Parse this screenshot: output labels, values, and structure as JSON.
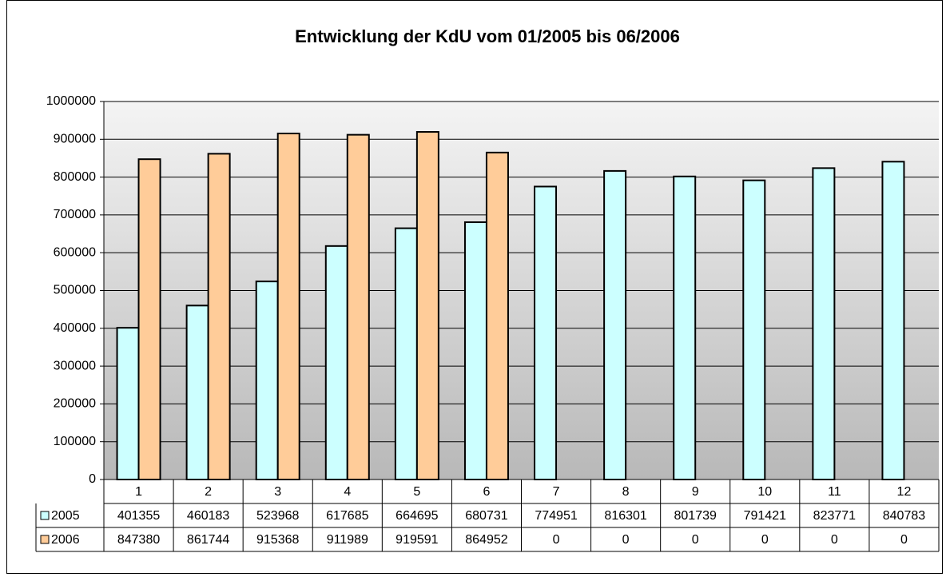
{
  "chart_data": {
    "type": "bar",
    "title": "Entwicklung der KdU vom 01/2005 bis 06/2006",
    "categories": [
      "1",
      "2",
      "3",
      "4",
      "5",
      "6",
      "7",
      "8",
      "9",
      "10",
      "11",
      "12"
    ],
    "series": [
      {
        "name": "2005",
        "color": "#ccffff",
        "values": [
          401355,
          460183,
          523968,
          617685,
          664695,
          680731,
          774951,
          816301,
          801739,
          791421,
          823771,
          840783
        ]
      },
      {
        "name": "2006",
        "color": "#ffcc99",
        "values": [
          847380,
          861744,
          915368,
          911989,
          919591,
          864952,
          0,
          0,
          0,
          0,
          0,
          0
        ]
      }
    ],
    "ylim": [
      0,
      1000000
    ],
    "yticks": [
      0,
      100000,
      200000,
      300000,
      400000,
      500000,
      600000,
      700000,
      800000,
      900000,
      1000000
    ],
    "grid": true
  }
}
